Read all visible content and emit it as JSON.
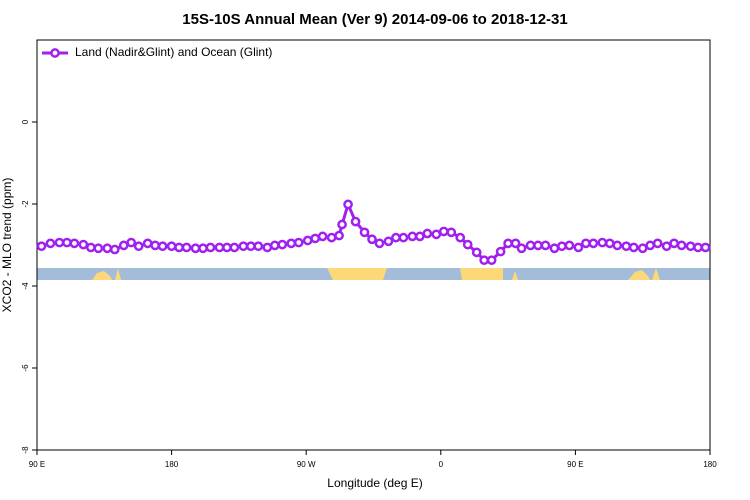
{
  "chart_data": {
    "type": "line",
    "title": "15S-10S Annual Mean (Ver 9)   2014-09-06 to 2018-12-31",
    "xlabel": "Longitude (deg E)",
    "ylabel": "XCO2 - MLO trend (ppm)",
    "xlim": [
      90,
      540
    ],
    "ylim": [
      -8,
      2
    ],
    "xticks": [
      {
        "value": 90,
        "label": "90 E"
      },
      180,
      {
        "value": 270,
        "label": "90 W"
      },
      {
        "value": 360,
        "label": "0"
      },
      {
        "value": 450,
        "label": "90 E"
      },
      {
        "value": 540,
        "label": "180"
      }
    ],
    "yticks": [
      -8,
      -6,
      -4,
      -2,
      0
    ],
    "legend": "upper left",
    "x": [
      93,
      99,
      105,
      110,
      115,
      121,
      126,
      131,
      137,
      142,
      148,
      153,
      158,
      164,
      169,
      174,
      180,
      185,
      190,
      196,
      201,
      206,
      212,
      217,
      222,
      228,
      233,
      238,
      244,
      249,
      254,
      260,
      265,
      271,
      276,
      281,
      287,
      292,
      294,
      298,
      303,
      309,
      314,
      319,
      325,
      330,
      335,
      341,
      346,
      351,
      357,
      362,
      367,
      373,
      378,
      384,
      389,
      394,
      400,
      405,
      410,
      414,
      420,
      425,
      430,
      436,
      441,
      446,
      452,
      457,
      462,
      468,
      473,
      478,
      484,
      489,
      495,
      500,
      505,
      511,
      516,
      521,
      527,
      532,
      537
    ],
    "series": [
      {
        "name": "Land (Nadir&Glint) and Ocean (Glint)",
        "color": "#a020f0",
        "values": [
          -3.03,
          -2.96,
          -2.94,
          -2.94,
          -2.96,
          -2.99,
          -3.06,
          -3.08,
          -3.08,
          -3.11,
          -3.01,
          -2.94,
          -3.03,
          -2.96,
          -3.01,
          -3.03,
          -3.03,
          -3.06,
          -3.06,
          -3.08,
          -3.08,
          -3.06,
          -3.06,
          -3.06,
          -3.06,
          -3.03,
          -3.03,
          -3.03,
          -3.06,
          -3.01,
          -2.99,
          -2.96,
          -2.94,
          -2.89,
          -2.84,
          -2.79,
          -2.82,
          -2.77,
          -2.5,
          -2.01,
          -2.43,
          -2.69,
          -2.86,
          -2.96,
          -2.91,
          -2.82,
          -2.82,
          -2.79,
          -2.79,
          -2.72,
          -2.74,
          -2.67,
          -2.69,
          -2.82,
          -2.99,
          -3.18,
          -3.37,
          -3.37,
          -3.16,
          -2.96,
          -2.96,
          -3.08,
          -3.01,
          -3.01,
          -3.01,
          -3.08,
          -3.03,
          -3.01,
          -3.06,
          -2.96,
          -2.96,
          -2.94,
          -2.96,
          -3.01,
          -3.03,
          -3.06,
          -3.08,
          -3.01,
          -2.96,
          -3.03,
          -2.96,
          -3.01,
          -3.03,
          -3.06,
          -3.06
        ]
      }
    ]
  }
}
